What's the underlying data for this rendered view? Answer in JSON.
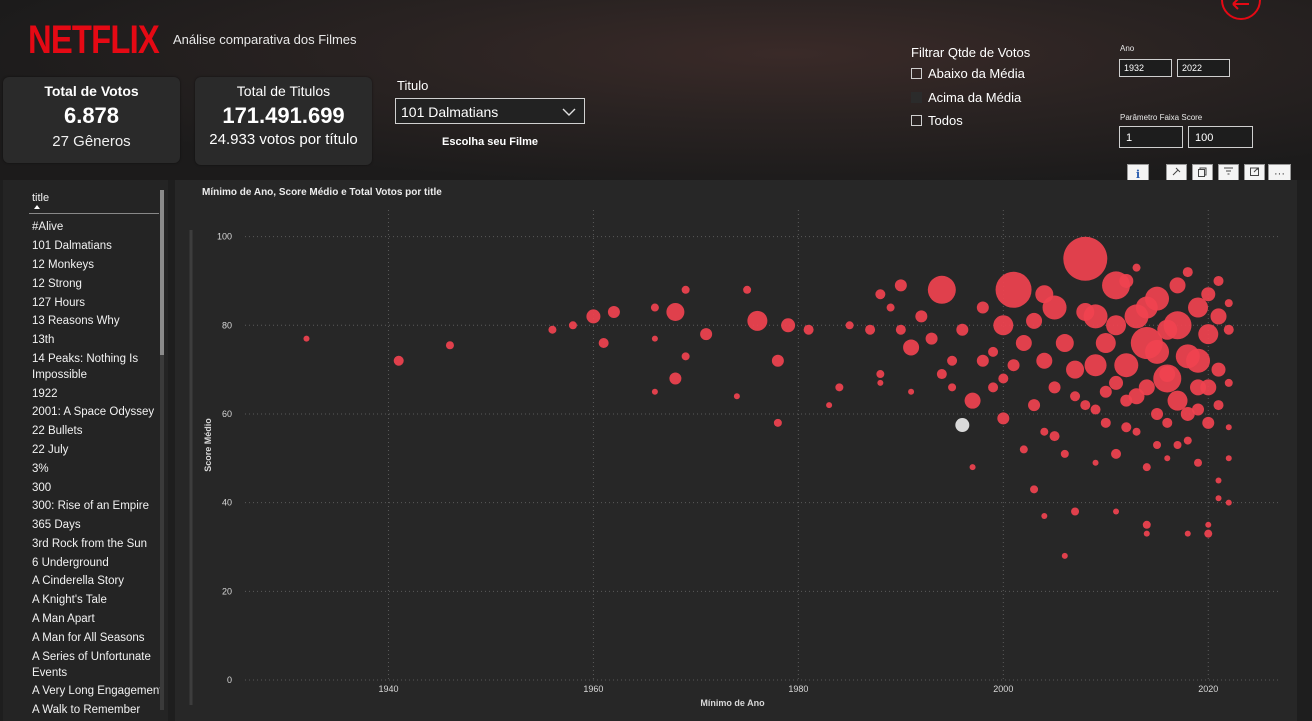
{
  "header": {
    "logo": "NETFLIX",
    "subtitle": "Análise comparativa dos Filmes"
  },
  "cards": {
    "votos": {
      "title": "Total de Votos",
      "value": "6.878",
      "sub": "27 Gêneros"
    },
    "titulos": {
      "title": "Total de Titulos",
      "value": "171.491.699",
      "sub": "24.933 votos por título"
    }
  },
  "titulo_filter": {
    "label": "Titulo",
    "selected": "101 Dalmatians",
    "caption": "Escolha seu Filme"
  },
  "votos_filter": {
    "title": "Filtrar Qtde de Votos",
    "options": [
      "Abaixo da Média",
      "Acima da Média",
      "Todos"
    ]
  },
  "ano_filter": {
    "label": "Ano",
    "from": "1932",
    "to": "2022"
  },
  "score_filter": {
    "label": "Parâmetro Faixa Score",
    "from": "1",
    "to": "100"
  },
  "title_list": {
    "header": "title",
    "items": [
      "#Alive",
      "101 Dalmatians",
      "12 Monkeys",
      "12 Strong",
      "127 Hours",
      "13 Reasons Why",
      "13th",
      "14 Peaks: Nothing Is Impossible",
      "1922",
      "2001: A Space Odyssey",
      "22 Bullets",
      "22 July",
      "3%",
      "300",
      "300: Rise of an Empire",
      "365 Days",
      "3rd Rock from the Sun",
      "6 Underground",
      "A Cinderella Story",
      "A Knight's Tale",
      "A Man Apart",
      "A Man for All Seasons",
      "A Series of Unfortunate Events",
      "A Very Long Engagement",
      "A Walk to Remember"
    ]
  },
  "toolbar": {
    "info_icon": "info-icon",
    "pin_icon": "pin-icon",
    "copy_icon": "copy-icon",
    "filter_icon": "filter-icon",
    "focus_icon": "focus-mode-icon",
    "more_icon": "more-options-icon"
  },
  "colors": {
    "brand": "#e50914",
    "bubble": "#f0424f",
    "highlight": "#d9d9d9"
  },
  "chart_data": {
    "type": "scatter",
    "title": "Mínimo de Ano, Score Médio e Total Votos por title",
    "xlabel": "Mínimo de Ano",
    "ylabel": "Score Médio",
    "xlim": [
      1926,
      2027
    ],
    "ylim": [
      0,
      106
    ],
    "x_ticks": [
      1940,
      1960,
      1980,
      2000,
      2020
    ],
    "y_ticks": [
      0,
      20,
      40,
      60,
      80,
      100
    ],
    "grid": true,
    "highlight": {
      "x": 1996,
      "y": 57.5,
      "r": 4
    },
    "points": [
      {
        "x": 1932,
        "y": 77,
        "r": 3
      },
      {
        "x": 1941,
        "y": 72,
        "r": 5
      },
      {
        "x": 1946,
        "y": 75.5,
        "r": 4
      },
      {
        "x": 1956,
        "y": 79,
        "r": 4
      },
      {
        "x": 1958,
        "y": 80,
        "r": 4
      },
      {
        "x": 1960,
        "y": 82,
        "r": 7
      },
      {
        "x": 1961,
        "y": 76,
        "r": 5
      },
      {
        "x": 1962,
        "y": 83,
        "r": 6
      },
      {
        "x": 1966,
        "y": 84,
        "r": 4
      },
      {
        "x": 1966,
        "y": 77,
        "r": 3
      },
      {
        "x": 1966,
        "y": 65,
        "r": 3
      },
      {
        "x": 1968,
        "y": 83,
        "r": 9
      },
      {
        "x": 1968,
        "y": 68,
        "r": 6
      },
      {
        "x": 1969,
        "y": 73,
        "r": 4
      },
      {
        "x": 1969,
        "y": 88,
        "r": 4
      },
      {
        "x": 1971,
        "y": 78,
        "r": 6
      },
      {
        "x": 1974,
        "y": 64,
        "r": 3
      },
      {
        "x": 1975,
        "y": 88,
        "r": 4
      },
      {
        "x": 1976,
        "y": 81,
        "r": 10
      },
      {
        "x": 1978,
        "y": 72,
        "r": 6
      },
      {
        "x": 1978,
        "y": 58,
        "r": 4
      },
      {
        "x": 1979,
        "y": 80,
        "r": 7
      },
      {
        "x": 1981,
        "y": 79,
        "r": 5
      },
      {
        "x": 1983,
        "y": 62,
        "r": 3
      },
      {
        "x": 1984,
        "y": 66,
        "r": 4
      },
      {
        "x": 1985,
        "y": 80,
        "r": 4
      },
      {
        "x": 1987,
        "y": 79,
        "r": 5
      },
      {
        "x": 1988,
        "y": 87,
        "r": 5
      },
      {
        "x": 1988,
        "y": 69,
        "r": 4
      },
      {
        "x": 1988,
        "y": 67,
        "r": 3
      },
      {
        "x": 1989,
        "y": 84,
        "r": 4
      },
      {
        "x": 1990,
        "y": 89,
        "r": 6
      },
      {
        "x": 1990,
        "y": 79,
        "r": 5
      },
      {
        "x": 1991,
        "y": 75,
        "r": 8
      },
      {
        "x": 1991,
        "y": 65,
        "r": 3
      },
      {
        "x": 1992,
        "y": 82,
        "r": 6
      },
      {
        "x": 1993,
        "y": 77,
        "r": 6
      },
      {
        "x": 1994,
        "y": 88,
        "r": 14
      },
      {
        "x": 1994,
        "y": 69,
        "r": 5
      },
      {
        "x": 1995,
        "y": 72,
        "r": 5
      },
      {
        "x": 1995,
        "y": 66,
        "r": 4
      },
      {
        "x": 1996,
        "y": 79,
        "r": 6
      },
      {
        "x": 1997,
        "y": 48,
        "r": 3
      },
      {
        "x": 1997,
        "y": 63,
        "r": 8
      },
      {
        "x": 1998,
        "y": 84,
        "r": 6
      },
      {
        "x": 1999,
        "y": 74,
        "r": 5
      },
      {
        "x": 2000,
        "y": 80,
        "r": 10
      },
      {
        "x": 2000,
        "y": 59,
        "r": 6
      },
      {
        "x": 2000,
        "y": 68,
        "r": 5
      },
      {
        "x": 2001,
        "y": 88,
        "r": 18
      },
      {
        "x": 2002,
        "y": 52,
        "r": 4
      },
      {
        "x": 2003,
        "y": 43,
        "r": 4
      },
      {
        "x": 2003,
        "y": 62,
        "r": 6
      },
      {
        "x": 2004,
        "y": 37,
        "r": 3
      },
      {
        "x": 2004,
        "y": 56,
        "r": 4
      },
      {
        "x": 2004,
        "y": 72,
        "r": 8
      },
      {
        "x": 2005,
        "y": 55,
        "r": 5
      },
      {
        "x": 2005,
        "y": 84,
        "r": 12
      },
      {
        "x": 2006,
        "y": 28,
        "r": 3
      },
      {
        "x": 2006,
        "y": 51,
        "r": 4
      },
      {
        "x": 2007,
        "y": 38,
        "r": 4
      },
      {
        "x": 2007,
        "y": 70,
        "r": 9
      },
      {
        "x": 2008,
        "y": 95,
        "r": 22
      },
      {
        "x": 2008,
        "y": 62,
        "r": 5
      },
      {
        "x": 2009,
        "y": 49,
        "r": 3
      },
      {
        "x": 2009,
        "y": 82,
        "r": 12
      },
      {
        "x": 2010,
        "y": 65,
        "r": 6
      },
      {
        "x": 2010,
        "y": 76,
        "r": 10
      },
      {
        "x": 2011,
        "y": 38,
        "r": 3
      },
      {
        "x": 2011,
        "y": 51,
        "r": 5
      },
      {
        "x": 2011,
        "y": 89,
        "r": 14
      },
      {
        "x": 2012,
        "y": 57,
        "r": 5
      },
      {
        "x": 2012,
        "y": 71,
        "r": 12
      },
      {
        "x": 2013,
        "y": 82,
        "r": 12
      },
      {
        "x": 2013,
        "y": 64,
        "r": 8
      },
      {
        "x": 2014,
        "y": 35,
        "r": 4
      },
      {
        "x": 2014,
        "y": 33,
        "r": 3
      },
      {
        "x": 2014,
        "y": 48,
        "r": 4
      },
      {
        "x": 2014,
        "y": 76,
        "r": 16
      },
      {
        "x": 2015,
        "y": 53,
        "r": 4
      },
      {
        "x": 2015,
        "y": 86,
        "r": 12
      },
      {
        "x": 2016,
        "y": 68,
        "r": 14
      },
      {
        "x": 2016,
        "y": 50,
        "r": 3
      },
      {
        "x": 2016,
        "y": 58,
        "r": 5
      },
      {
        "x": 2017,
        "y": 80,
        "r": 14
      },
      {
        "x": 2017,
        "y": 63,
        "r": 10
      },
      {
        "x": 2018,
        "y": 33,
        "r": 3
      },
      {
        "x": 2018,
        "y": 73,
        "r": 12
      },
      {
        "x": 2018,
        "y": 54,
        "r": 4
      },
      {
        "x": 2019,
        "y": 49,
        "r": 4
      },
      {
        "x": 2019,
        "y": 84,
        "r": 10
      },
      {
        "x": 2019,
        "y": 66,
        "r": 8
      },
      {
        "x": 2020,
        "y": 33,
        "r": 4
      },
      {
        "x": 2020,
        "y": 35,
        "r": 3
      },
      {
        "x": 2020,
        "y": 78,
        "r": 10
      },
      {
        "x": 2020,
        "y": 58,
        "r": 6
      },
      {
        "x": 2021,
        "y": 45,
        "r": 3
      },
      {
        "x": 2021,
        "y": 41,
        "r": 3
      },
      {
        "x": 2021,
        "y": 90,
        "r": 5
      },
      {
        "x": 2021,
        "y": 70,
        "r": 7
      },
      {
        "x": 2022,
        "y": 40,
        "r": 3
      },
      {
        "x": 2022,
        "y": 50,
        "r": 3
      },
      {
        "x": 2022,
        "y": 79,
        "r": 5
      },
      {
        "x": 2022,
        "y": 67,
        "r": 4
      },
      {
        "x": 2022,
        "y": 57,
        "r": 3
      },
      {
        "x": 2009,
        "y": 71,
        "r": 11
      },
      {
        "x": 2012,
        "y": 90,
        "r": 7
      },
      {
        "x": 2015,
        "y": 74,
        "r": 12
      },
      {
        "x": 2017,
        "y": 89,
        "r": 8
      },
      {
        "x": 2019,
        "y": 72,
        "r": 12
      },
      {
        "x": 2006,
        "y": 76,
        "r": 9
      },
      {
        "x": 2003,
        "y": 81,
        "r": 8
      },
      {
        "x": 2010,
        "y": 58,
        "r": 5
      },
      {
        "x": 2013,
        "y": 56,
        "r": 4
      },
      {
        "x": 2018,
        "y": 60,
        "r": 7
      },
      {
        "x": 2020,
        "y": 66,
        "r": 8
      },
      {
        "x": 2016,
        "y": 79,
        "r": 10
      },
      {
        "x": 2008,
        "y": 83,
        "r": 9
      },
      {
        "x": 1999,
        "y": 66,
        "r": 5
      },
      {
        "x": 2002,
        "y": 76,
        "r": 8
      },
      {
        "x": 2011,
        "y": 80,
        "r": 10
      },
      {
        "x": 2014,
        "y": 84,
        "r": 11
      },
      {
        "x": 2021,
        "y": 82,
        "r": 8
      },
      {
        "x": 2019,
        "y": 61,
        "r": 6
      },
      {
        "x": 2017,
        "y": 53,
        "r": 4
      },
      {
        "x": 2015,
        "y": 60,
        "r": 6
      },
      {
        "x": 2012,
        "y": 63,
        "r": 6
      },
      {
        "x": 2007,
        "y": 64,
        "r": 5
      },
      {
        "x": 2005,
        "y": 66,
        "r": 6
      },
      {
        "x": 2004,
        "y": 87,
        "r": 9
      },
      {
        "x": 1998,
        "y": 72,
        "r": 6
      },
      {
        "x": 2001,
        "y": 71,
        "r": 6
      },
      {
        "x": 2022,
        "y": 85,
        "r": 4
      },
      {
        "x": 2021,
        "y": 62,
        "r": 5
      },
      {
        "x": 2020,
        "y": 87,
        "r": 7
      },
      {
        "x": 2013,
        "y": 93,
        "r": 4
      },
      {
        "x": 2018,
        "y": 92,
        "r": 5
      },
      {
        "x": 2009,
        "y": 61,
        "r": 5
      },
      {
        "x": 2016,
        "y": 69,
        "r": 8
      },
      {
        "x": 2014,
        "y": 66,
        "r": 8
      },
      {
        "x": 2011,
        "y": 67,
        "r": 7
      }
    ]
  }
}
